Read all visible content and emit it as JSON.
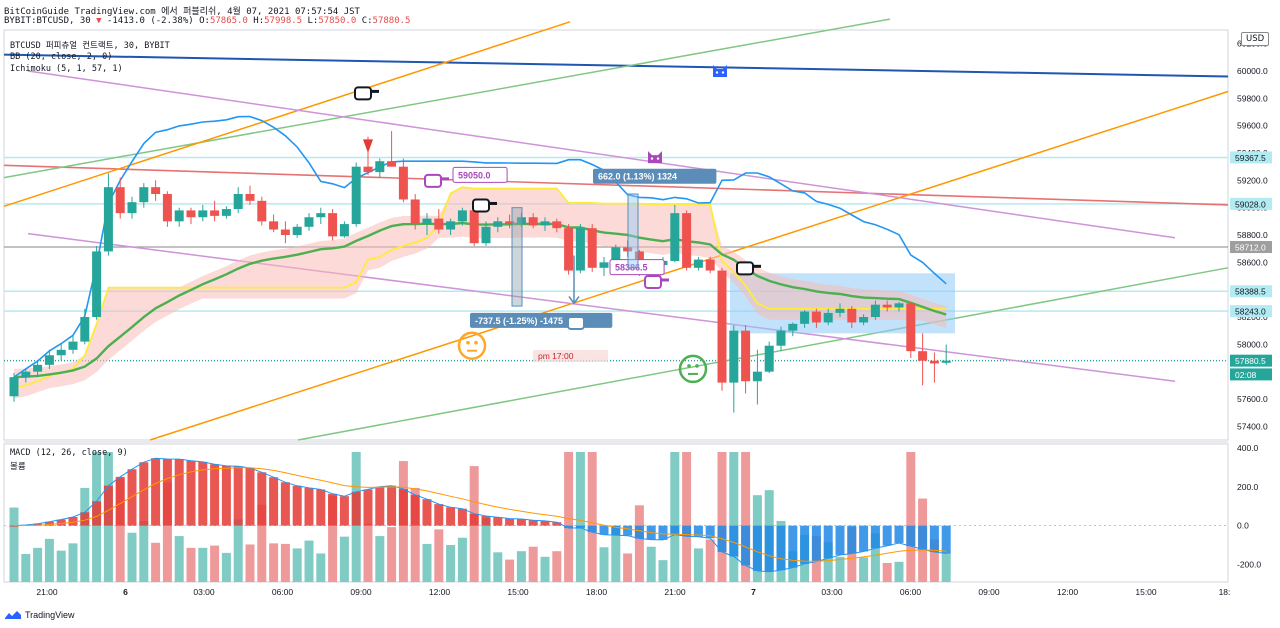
{
  "header": {
    "line1": "BitCoinGuide TradingView.com 에서 퍼블리쉬, 4월 07, 2021 07:57:54 JST",
    "symbol": "BYBIT:BTCUSD, 30",
    "change_arrow": "▼",
    "change": "-1413.0 (-2.38%)",
    "o_label": "O:",
    "o": "57865.0",
    "h_label": "H:",
    "h": "57998.5",
    "l_label": "L:",
    "l": "57850.0",
    "c_label": "C:",
    "c": "57880.5"
  },
  "legend": {
    "title": "BTCUSD 퍼피츄얼 컨트랙트, 30, BYBIT",
    "bb": "BB (20, close, 2, 0)",
    "ichimoku": "Ichimoku (5, 1, 57, 1)",
    "macd": "MACD (12, 26, close, 9)",
    "volume": "볼륨"
  },
  "currency": "USD",
  "brand": "TradingView",
  "colors": {
    "up": "#26a69a",
    "down": "#ef5350",
    "bb": "#2196f3",
    "ema": "#4caf50",
    "yellow": "#ffeb3b",
    "orange": "#ff9800",
    "lilac": "#ce93d8",
    "red_line": "#e57373",
    "dark_blue": "#1e56b0",
    "cloud": "#f8bbb6",
    "range": "#90caf9",
    "hist_pos": "#e53935",
    "hist_neg": "#1e88e5",
    "vol_up": "#80cbc4",
    "vol_down": "#ef9a9a"
  },
  "chart_data": {
    "type": "candlestick",
    "price_axis": {
      "ylim": [
        57300,
        60300
      ],
      "ticks": [
        60200,
        60000,
        59800,
        59600,
        59400,
        59200,
        59000,
        58800,
        58600,
        58400,
        58200,
        58000,
        57800,
        57600,
        57400
      ]
    },
    "price_tags": [
      {
        "label": "59367.5",
        "value": 59367.5,
        "color": "#b2ebf2"
      },
      {
        "label": "59028.0",
        "value": 59028.0,
        "color": "#b2ebf2"
      },
      {
        "label": "58712.0",
        "value": 58712.0,
        "color": "#9e9e9e"
      },
      {
        "label": "58388.5",
        "value": 58388.5,
        "color": "#b2ebf2"
      },
      {
        "label": "58243.0",
        "value": 58243.0,
        "color": "#b2ebf2"
      },
      {
        "label": "57880.5",
        "value": 57880.5,
        "color": "#26a69a"
      },
      {
        "label": "02:08",
        "value": 57780,
        "color": "#26a69a"
      }
    ],
    "time_axis": [
      "21:00",
      "6",
      "03:00",
      "06:00",
      "09:00",
      "12:00",
      "15:00",
      "18:00",
      "21:00",
      "7",
      "03:00",
      "06:00",
      "09:00",
      "12:00",
      "15:00",
      "18:"
    ],
    "candles": [
      {
        "o": 57620,
        "h": 57790,
        "l": 57580,
        "c": 57760
      },
      {
        "o": 57760,
        "h": 57820,
        "l": 57720,
        "c": 57800
      },
      {
        "o": 57800,
        "h": 57880,
        "l": 57760,
        "c": 57850
      },
      {
        "o": 57850,
        "h": 57960,
        "l": 57820,
        "c": 57920
      },
      {
        "o": 57920,
        "h": 58000,
        "l": 57880,
        "c": 57960
      },
      {
        "o": 57960,
        "h": 58060,
        "l": 57930,
        "c": 58020
      },
      {
        "o": 58020,
        "h": 58260,
        "l": 58000,
        "c": 58200
      },
      {
        "o": 58200,
        "h": 58720,
        "l": 58180,
        "c": 58680
      },
      {
        "o": 58680,
        "h": 59250,
        "l": 58650,
        "c": 59150
      },
      {
        "o": 59150,
        "h": 59220,
        "l": 58920,
        "c": 58960
      },
      {
        "o": 58960,
        "h": 59080,
        "l": 58920,
        "c": 59040
      },
      {
        "o": 59040,
        "h": 59180,
        "l": 59000,
        "c": 59150
      },
      {
        "o": 59150,
        "h": 59200,
        "l": 59050,
        "c": 59100
      },
      {
        "o": 59100,
        "h": 59120,
        "l": 58860,
        "c": 58900
      },
      {
        "o": 58900,
        "h": 59000,
        "l": 58860,
        "c": 58980
      },
      {
        "o": 58980,
        "h": 59000,
        "l": 58880,
        "c": 58930
      },
      {
        "o": 58930,
        "h": 59020,
        "l": 58900,
        "c": 58980
      },
      {
        "o": 58980,
        "h": 59050,
        "l": 58900,
        "c": 58940
      },
      {
        "o": 58940,
        "h": 59010,
        "l": 58920,
        "c": 58990
      },
      {
        "o": 58990,
        "h": 59150,
        "l": 58960,
        "c": 59100
      },
      {
        "o": 59100,
        "h": 59160,
        "l": 59020,
        "c": 59050
      },
      {
        "o": 59050,
        "h": 59080,
        "l": 58870,
        "c": 58900
      },
      {
        "o": 58900,
        "h": 58950,
        "l": 58820,
        "c": 58840
      },
      {
        "o": 58840,
        "h": 58900,
        "l": 58740,
        "c": 58800
      },
      {
        "o": 58800,
        "h": 58880,
        "l": 58780,
        "c": 58860
      },
      {
        "o": 58860,
        "h": 58960,
        "l": 58830,
        "c": 58930
      },
      {
        "o": 58930,
        "h": 59000,
        "l": 58880,
        "c": 58960
      },
      {
        "o": 58960,
        "h": 58990,
        "l": 58760,
        "c": 58790
      },
      {
        "o": 58790,
        "h": 58900,
        "l": 58780,
        "c": 58880
      },
      {
        "o": 58880,
        "h": 59330,
        "l": 58860,
        "c": 59300
      },
      {
        "o": 59300,
        "h": 59520,
        "l": 59240,
        "c": 59260
      },
      {
        "o": 59260,
        "h": 59360,
        "l": 59220,
        "c": 59340
      },
      {
        "o": 59340,
        "h": 59560,
        "l": 59300,
        "c": 59300
      },
      {
        "o": 59300,
        "h": 59360,
        "l": 59040,
        "c": 59060
      },
      {
        "o": 59060,
        "h": 59100,
        "l": 58840,
        "c": 58880
      },
      {
        "o": 58880,
        "h": 58960,
        "l": 58800,
        "c": 58920
      },
      {
        "o": 58920,
        "h": 58990,
        "l": 58810,
        "c": 58840
      },
      {
        "o": 58840,
        "h": 58920,
        "l": 58800,
        "c": 58900
      },
      {
        "o": 58900,
        "h": 59000,
        "l": 58870,
        "c": 58980
      },
      {
        "o": 58980,
        "h": 59010,
        "l": 58720,
        "c": 58740
      },
      {
        "o": 58740,
        "h": 58900,
        "l": 58720,
        "c": 58860
      },
      {
        "o": 58860,
        "h": 58930,
        "l": 58820,
        "c": 58900
      },
      {
        "o": 58900,
        "h": 58950,
        "l": 58850,
        "c": 58880
      },
      {
        "o": 58880,
        "h": 58960,
        "l": 58860,
        "c": 58930
      },
      {
        "o": 58930,
        "h": 58960,
        "l": 58850,
        "c": 58870
      },
      {
        "o": 58870,
        "h": 58930,
        "l": 58830,
        "c": 58900
      },
      {
        "o": 58900,
        "h": 58920,
        "l": 58820,
        "c": 58850
      },
      {
        "o": 58850,
        "h": 58880,
        "l": 58510,
        "c": 58540
      },
      {
        "o": 58540,
        "h": 58880,
        "l": 58520,
        "c": 58850
      },
      {
        "o": 58850,
        "h": 58880,
        "l": 58530,
        "c": 58560
      },
      {
        "o": 58560,
        "h": 58640,
        "l": 58500,
        "c": 58600
      },
      {
        "o": 58600,
        "h": 58730,
        "l": 58580,
        "c": 58710
      },
      {
        "o": 58710,
        "h": 58760,
        "l": 58640,
        "c": 58680
      },
      {
        "o": 58680,
        "h": 58690,
        "l": 58500,
        "c": 58520
      },
      {
        "o": 58520,
        "h": 58600,
        "l": 58490,
        "c": 58580
      },
      {
        "o": 58580,
        "h": 58640,
        "l": 58560,
        "c": 58610
      },
      {
        "o": 58610,
        "h": 59020,
        "l": 58600,
        "c": 58960
      },
      {
        "o": 58960,
        "h": 58980,
        "l": 58540,
        "c": 58560
      },
      {
        "o": 58560,
        "h": 58640,
        "l": 58540,
        "c": 58620
      },
      {
        "o": 58620,
        "h": 58640,
        "l": 58520,
        "c": 58540
      },
      {
        "o": 58540,
        "h": 58560,
        "l": 57660,
        "c": 57720
      },
      {
        "o": 57720,
        "h": 58140,
        "l": 57500,
        "c": 58100
      },
      {
        "o": 58100,
        "h": 58140,
        "l": 57640,
        "c": 57730
      },
      {
        "o": 57730,
        "h": 57960,
        "l": 57560,
        "c": 57800
      },
      {
        "o": 57800,
        "h": 58020,
        "l": 57790,
        "c": 57990
      },
      {
        "o": 57990,
        "h": 58130,
        "l": 57950,
        "c": 58100
      },
      {
        "o": 58100,
        "h": 58160,
        "l": 58060,
        "c": 58150
      },
      {
        "o": 58150,
        "h": 58250,
        "l": 58120,
        "c": 58240
      },
      {
        "o": 58240,
        "h": 58260,
        "l": 58120,
        "c": 58160
      },
      {
        "o": 58160,
        "h": 58260,
        "l": 58140,
        "c": 58230
      },
      {
        "o": 58230,
        "h": 58300,
        "l": 58200,
        "c": 58260
      },
      {
        "o": 58260,
        "h": 58280,
        "l": 58120,
        "c": 58160
      },
      {
        "o": 58160,
        "h": 58220,
        "l": 58140,
        "c": 58200
      },
      {
        "o": 58200,
        "h": 58320,
        "l": 58180,
        "c": 58290
      },
      {
        "o": 58290,
        "h": 58320,
        "l": 58240,
        "c": 58270
      },
      {
        "o": 58270,
        "h": 58310,
        "l": 58240,
        "c": 58300
      },
      {
        "o": 58300,
        "h": 58310,
        "l": 57900,
        "c": 57950
      },
      {
        "o": 57950,
        "h": 58080,
        "l": 57700,
        "c": 57880
      },
      {
        "o": 57880,
        "h": 57940,
        "l": 57720,
        "c": 57860
      },
      {
        "o": 57865,
        "h": 57998.5,
        "l": 57850,
        "c": 57880.5
      }
    ],
    "annotations": [
      "59050.0",
      "662.0 (1.13%) 1324",
      "-737.5 (-1.25%) -1475",
      "58386.5",
      "pm 17:00"
    ],
    "macd_axis": {
      "ylim": [
        -290,
        420
      ],
      "ticks": [
        "400.0",
        "200.0",
        "0.0",
        "-200.0"
      ]
    }
  }
}
